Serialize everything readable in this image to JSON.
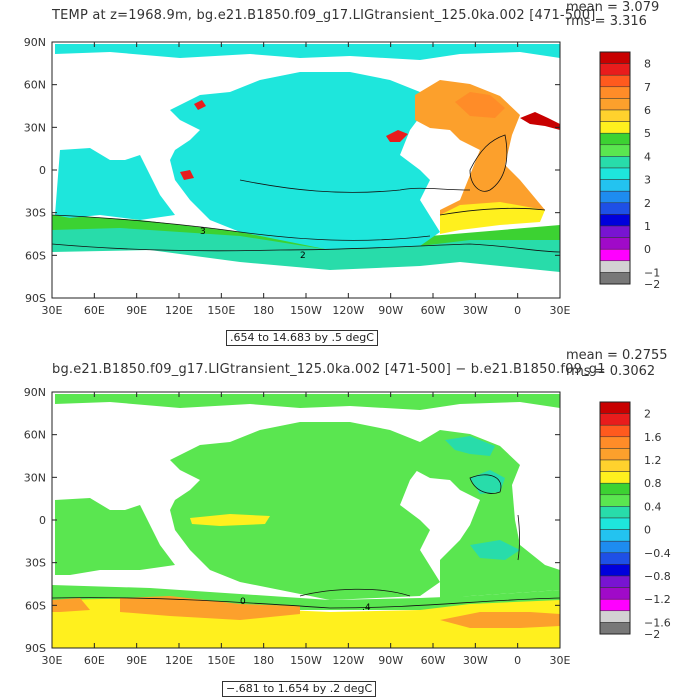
{
  "panels": [
    {
      "id": "top",
      "title": "TEMP at z=1968.9m, bg.e21.B1850.f09_g17.LIGtransient_125.0ka.002 [471-500]",
      "mean_label": "mean = 3.079",
      "rms_label": "rms = 3.316",
      "info": ".654 to 14.683 by .5 degC",
      "colorbar_labels": [
        "8",
        "7",
        "6",
        "5",
        "4",
        "3",
        "2",
        "1",
        "0",
        "−1",
        "−2"
      ],
      "colorbar_colors": [
        "#c80000",
        "#e81c1c",
        "#ff5a1e",
        "#ff8c28",
        "#fca02c",
        "#ffd22d",
        "#fff01e",
        "#3cd232",
        "#5ae650",
        "#28dcaa",
        "#1ee6dc",
        "#23c3f0",
        "#1e8cf0",
        "#1e50e6",
        "#0000dc",
        "#7814d2",
        "#a00ac8",
        "#ff00ff",
        "#d2d2d2",
        "#787878"
      ],
      "contour_labels": [
        "3",
        "2"
      ]
    },
    {
      "id": "bottom",
      "title": "bg.e21.B1850.f09_g17.LIGtransient_125.0ka.002 [471-500] − b.e21.B1850.f09_g1",
      "mean_label": "mean = 0.2755",
      "rms_label": "rms = 0.3062",
      "info": "−.681 to 1.654 by .2 degC",
      "colorbar_labels": [
        "2",
        "1.6",
        "1.2",
        "0.8",
        "0.4",
        "0",
        "−0.4",
        "−0.8",
        "−1.2",
        "−1.6",
        "−2"
      ],
      "colorbar_colors": [
        "#c80000",
        "#e81c1c",
        "#ff5a1e",
        "#ff8c28",
        "#fca02c",
        "#ffd22d",
        "#fff01e",
        "#3cd232",
        "#5ae650",
        "#28dcaa",
        "#1ee6dc",
        "#23c3f0",
        "#1e8cf0",
        "#1e50e6",
        "#0000dc",
        "#7814d2",
        "#a00ac8",
        "#ff00ff",
        "#d2d2d2",
        "#787878"
      ],
      "contour_labels": [
        ".4",
        "0"
      ]
    }
  ],
  "axes": {
    "lat_labels": [
      "90N",
      "60N",
      "30N",
      "0",
      "30S",
      "60S",
      "90S"
    ],
    "lon_labels": [
      "30E",
      "60E",
      "90E",
      "120E",
      "150E",
      "180",
      "150W",
      "120W",
      "90W",
      "60W",
      "30W",
      "0",
      "30E"
    ]
  }
}
